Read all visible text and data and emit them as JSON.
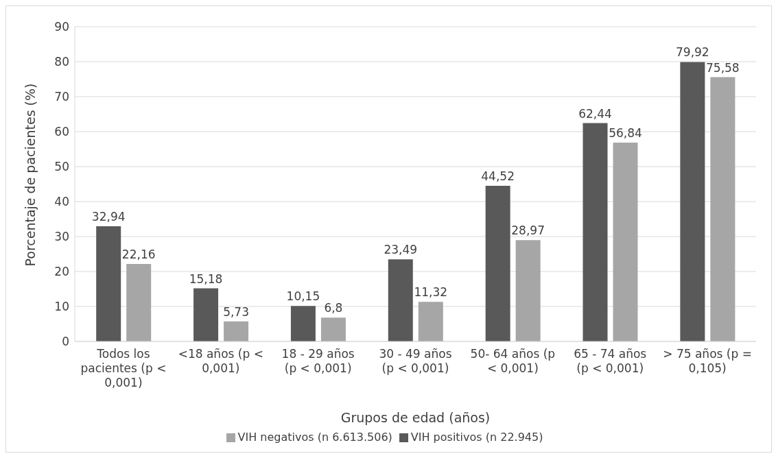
{
  "chart_data": {
    "type": "bar",
    "xlabel": "Grupos de edad (años)",
    "ylabel": "Porcentaje de pacientes (%)",
    "categories": [
      "Todos los pacientes (p < 0,001)",
      "<18 años (p < 0,001)",
      "18 - 29 años (p < 0,001)",
      "30 - 49 años (p < 0,001)",
      "50- 64 años (p < 0,001)",
      "65 - 74 años (p < 0,001)",
      "> 75 años (p = 0,105)"
    ],
    "series": [
      {
        "name": "VIH positivos (n 22.945)",
        "color": "#595959",
        "values": [
          32.94,
          15.18,
          10.15,
          23.49,
          44.52,
          62.44,
          79.92
        ],
        "value_labels": [
          "32,94",
          "15,18",
          "10,15",
          "23,49",
          "44,52",
          "62,44",
          "79,92"
        ]
      },
      {
        "name": "VIH negativos (n 6.613.506)",
        "color": "#a6a6a6",
        "values": [
          22.16,
          5.73,
          6.8,
          11.32,
          28.97,
          56.84,
          75.58
        ],
        "value_labels": [
          "22,16",
          "5,73",
          "6,8",
          "11,32",
          "28,97",
          "56,84",
          "75,58"
        ]
      }
    ],
    "ylim": [
      0,
      90
    ],
    "yticks": [
      0,
      10,
      20,
      30,
      40,
      50,
      60,
      70,
      80,
      90
    ],
    "grid": "y",
    "legend": "bottom"
  }
}
